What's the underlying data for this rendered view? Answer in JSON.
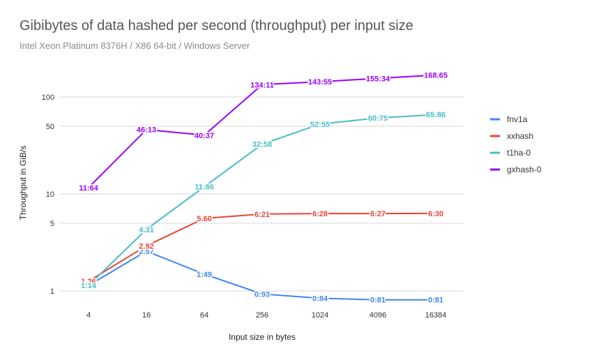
{
  "chart_data": {
    "type": "line",
    "title": "Gibibytes of data hashed per second (throughput) per input size",
    "subtitle": "Intel Xeon Platinum 8376H / X86 64-bit / Windows Server",
    "xlabel": "Input size in bytes",
    "ylabel": "Throughput in GiB/s",
    "categories": [
      "4",
      "16",
      "64",
      "256",
      "1024",
      "4096",
      "16384"
    ],
    "y_scale": "log",
    "ylim": [
      0.8,
      200
    ],
    "y_ticks": [
      1,
      5,
      10,
      50,
      100
    ],
    "grid": true,
    "legend_position": "right",
    "series": [
      {
        "name": "fnv1a",
        "color": "#4285f4",
        "values": [
          1.14,
          2.57,
          1.49,
          0.93,
          0.84,
          0.81,
          0.81
        ],
        "labels": [
          "",
          "2.57",
          "1:49",
          "0:93",
          "0:84",
          "0:81",
          "0:81"
        ]
      },
      {
        "name": "xxhash",
        "color": "#ea4335",
        "values": [
          1.26,
          2.92,
          5.6,
          6.21,
          6.28,
          6.27,
          6.3
        ],
        "labels": [
          "1.26",
          "2.92",
          "5.60",
          "6:21",
          "6:28",
          "6:27",
          "6:30"
        ]
      },
      {
        "name": "t1ha-0",
        "color": "#46bdc6",
        "values": [
          1.14,
          4.31,
          11.86,
          32.58,
          52.55,
          60.75,
          65.86
        ],
        "labels": [
          "1:14",
          "4.31",
          "11:86",
          "32:58",
          "52:55",
          "60:75",
          "65:86"
        ]
      },
      {
        "name": "gxhash-0",
        "color": "#9900ff",
        "values": [
          11.64,
          46.13,
          40.37,
          134.11,
          143.55,
          155.34,
          168.65
        ],
        "labels": [
          "11:64",
          "46:13",
          "40:37",
          "134:11",
          "143:55",
          "155:34",
          "168.65"
        ]
      }
    ]
  }
}
